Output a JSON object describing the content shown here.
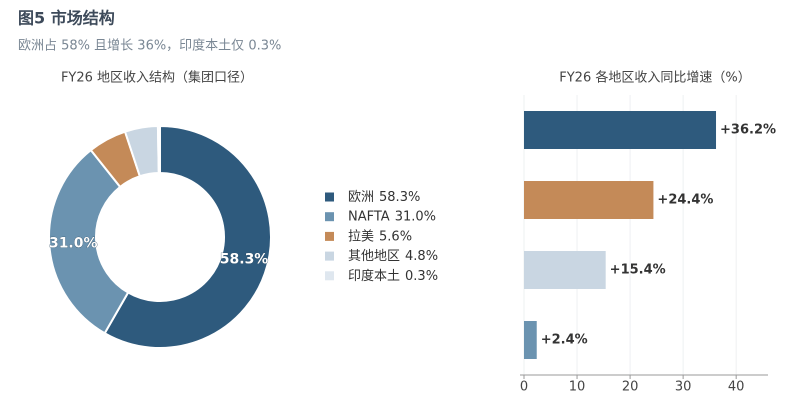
{
  "title": "图5  市场结构",
  "subtitle": "欧洲占 58% 且增长 36%，印度本土仅 0.3%",
  "chart_data": [
    {
      "type": "pie",
      "title": "FY26 地区收入结构（集团口径）",
      "categories": [
        "欧洲",
        "NAFTA",
        "拉美",
        "其他地区",
        "印度本土"
      ],
      "values": [
        58.3,
        31.0,
        5.6,
        4.8,
        0.3
      ],
      "value_labels": [
        "58.3%",
        "31.0%",
        "5.6%",
        "4.8%",
        "0.3%"
      ],
      "colors": [
        "#2e5a7d",
        "#6b93b0",
        "#c48a58",
        "#c9d6e2",
        "#dfe7ef"
      ],
      "legend": "right"
    },
    {
      "type": "bar",
      "orientation": "horizontal",
      "title": "FY26 各地区收入同比增速（%）",
      "categories": [
        null,
        null,
        null,
        null
      ],
      "values": [
        36.2,
        24.4,
        15.4,
        2.4
      ],
      "value_labels": [
        "+36.2%",
        "+24.4%",
        "+15.4%",
        "+2.4%"
      ],
      "colors": [
        "#2e5a7d",
        "#c48a58",
        "#c9d6e2",
        "#6b93b0"
      ],
      "xlim": [
        0,
        46
      ],
      "xticks": [
        0,
        10,
        20,
        30,
        40
      ],
      "grid": true
    }
  ]
}
